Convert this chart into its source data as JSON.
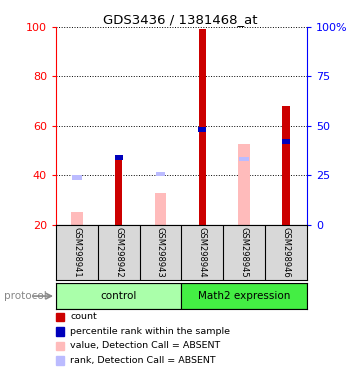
{
  "title": "GDS3436 / 1381468_at",
  "samples": [
    "GSM298941",
    "GSM298942",
    "GSM298943",
    "GSM298944",
    "GSM298945",
    "GSM298946"
  ],
  "groups": [
    "control",
    "control",
    "control",
    "Math2 expression",
    "Math2 expression",
    "Math2 expression"
  ],
  "ylim_left": [
    20,
    100
  ],
  "ylim_right": [
    0,
    100
  ],
  "right_ticks": [
    0,
    25,
    50,
    75,
    100
  ],
  "right_tick_labels": [
    "0",
    "25",
    "50",
    "75",
    "100%"
  ],
  "left_ticks": [
    20,
    40,
    60,
    80,
    100
  ],
  "dotted_lines": [
    40,
    60,
    80,
    100
  ],
  "red_bars": [
    null,
    46,
    null,
    99,
    null,
    68
  ],
  "blue_bars": [
    null,
    47.0,
    null,
    58.5,
    null,
    53.5
  ],
  "pink_bars": [
    25,
    null,
    33,
    null,
    52.5,
    null
  ],
  "light_blue_bars": [
    39.0,
    null,
    40.5,
    null,
    46.5,
    null
  ],
  "red_color": "#cc0000",
  "blue_color": "#0000bb",
  "pink_color": "#ffbbbb",
  "light_blue_color": "#bbbbff",
  "legend_items": [
    {
      "label": "count",
      "color": "#cc0000"
    },
    {
      "label": "percentile rank within the sample",
      "color": "#0000bb"
    },
    {
      "label": "value, Detection Call = ABSENT",
      "color": "#ffbbbb"
    },
    {
      "label": "rank, Detection Call = ABSENT",
      "color": "#bbbbff"
    }
  ],
  "control_color": "#aaffaa",
  "math2_color": "#44ee44",
  "sample_box_color": "#d8d8d8",
  "background_color": "#ffffff"
}
